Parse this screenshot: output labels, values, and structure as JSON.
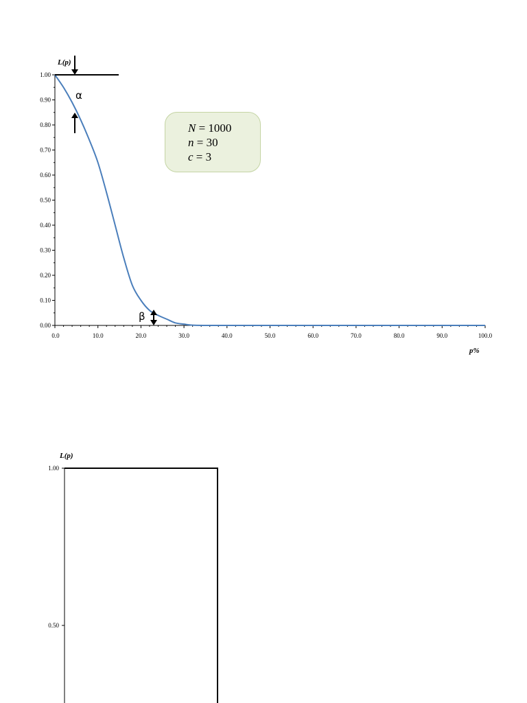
{
  "chart_data": [
    {
      "type": "line",
      "title": "",
      "ylabel": "L(p)",
      "xlabel": "p%",
      "xlim": [
        0,
        100
      ],
      "ylim": [
        0,
        1
      ],
      "x_ticks": [
        "0.0",
        "10.0",
        "20.0",
        "30.0",
        "40.0",
        "50.0",
        "60.0",
        "70.0",
        "80.0",
        "90.0",
        "100.0"
      ],
      "y_ticks": [
        "0.00",
        "0.10",
        "0.20",
        "0.30",
        "0.40",
        "0.50",
        "0.60",
        "0.70",
        "0.80",
        "0.90",
        "1.00"
      ],
      "line_color": "#4a7ebb",
      "series": [
        {
          "x": [
            0,
            2,
            4,
            6,
            8,
            10,
            12,
            14,
            16,
            18,
            20,
            22,
            24,
            26,
            28,
            30,
            32,
            35,
            40,
            50,
            60,
            70,
            80,
            90,
            100
          ],
          "values": [
            1.0,
            0.95,
            0.89,
            0.82,
            0.74,
            0.65,
            0.53,
            0.4,
            0.27,
            0.16,
            0.1,
            0.06,
            0.04,
            0.025,
            0.01,
            0.005,
            0.001,
            0.0,
            0.0,
            0.0,
            0.0,
            0.0,
            0.0,
            0.0,
            0.0
          ]
        }
      ],
      "annotations": {
        "alpha": "α",
        "beta": "β",
        "params": [
          {
            "var": "N",
            "rest": " = 1000"
          },
          {
            "var": "n",
            "rest": " = 30"
          },
          {
            "var": "c",
            "rest": " = 3"
          }
        ]
      }
    },
    {
      "type": "line",
      "title": "",
      "ylabel": "L(p)",
      "xlabel": "",
      "ylim": [
        0,
        1
      ],
      "y_ticks": [
        "1.00",
        "0.50"
      ],
      "line_color": "#000000"
    }
  ]
}
